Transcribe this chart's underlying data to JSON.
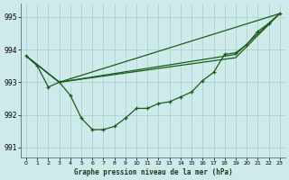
{
  "title": "Graphe pression niveau de la mer (hPa)",
  "bg_color": "#ceeaea",
  "grid_color": "#a8d0d0",
  "line_color": "#1a5c1a",
  "xlim": [
    -0.5,
    23.5
  ],
  "ylim": [
    990.7,
    995.4
  ],
  "yticks": [
    991,
    992,
    993,
    994,
    995
  ],
  "xticks": [
    0,
    1,
    2,
    3,
    4,
    5,
    6,
    7,
    8,
    9,
    10,
    11,
    12,
    13,
    14,
    15,
    16,
    17,
    18,
    19,
    20,
    21,
    22,
    23
  ],
  "line1_x": [
    0,
    1,
    2,
    3,
    4,
    5,
    6,
    7,
    8,
    9,
    10,
    11,
    12,
    13,
    14,
    15,
    16,
    17,
    18,
    19,
    20,
    21,
    22,
    23
  ],
  "line1_y": [
    993.8,
    993.5,
    992.85,
    993.0,
    992.6,
    991.9,
    991.55,
    991.55,
    991.65,
    991.9,
    992.2,
    992.2,
    992.35,
    992.4,
    992.55,
    992.7,
    993.05,
    993.3,
    993.85,
    993.9,
    994.15,
    994.55,
    994.8,
    995.1
  ],
  "line2_x": [
    0,
    3,
    23
  ],
  "line2_y": [
    993.8,
    993.0,
    995.1
  ],
  "line3_x": [
    0,
    3,
    19,
    23
  ],
  "line3_y": [
    993.8,
    993.0,
    993.9,
    995.1
  ],
  "line4_x": [
    0,
    3,
    19,
    23
  ],
  "line4_y": [
    993.8,
    993.0,
    993.85,
    995.1
  ]
}
